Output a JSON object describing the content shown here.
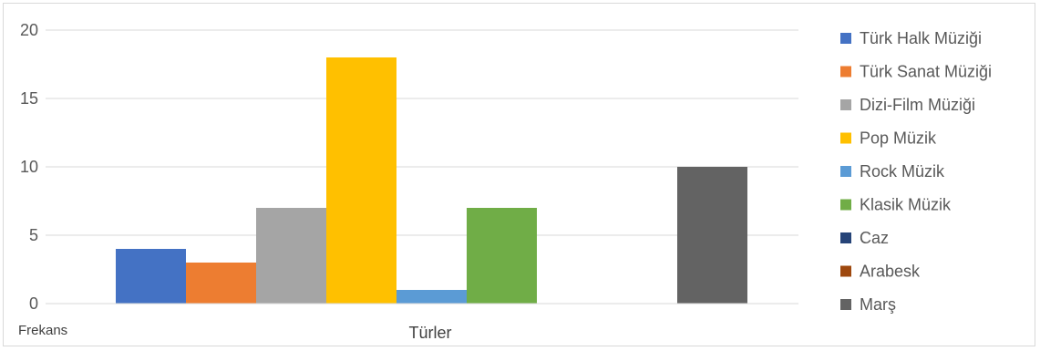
{
  "chart_data": {
    "type": "bar",
    "xlabel": "Türler",
    "ylabel": "Frekans",
    "ylim": [
      0,
      20
    ],
    "yticks": [
      "0",
      "5",
      "10",
      "15",
      "20"
    ],
    "grid": true,
    "legend_position": "right",
    "series": [
      {
        "name": "Türk Halk Müziği",
        "value": 4,
        "color": "#4472c4"
      },
      {
        "name": "Türk Sanat Müziği",
        "value": 3,
        "color": "#ed7d31"
      },
      {
        "name": "Dizi-Film Müziği",
        "value": 7,
        "color": "#a5a5a5"
      },
      {
        "name": "Pop Müzik",
        "value": 18,
        "color": "#ffc000"
      },
      {
        "name": "Rock Müzik",
        "value": 1,
        "color": "#5b9bd5"
      },
      {
        "name": "Klasik Müzik",
        "value": 7,
        "color": "#70ad47"
      },
      {
        "name": "Caz",
        "value": 0,
        "color": "#264478"
      },
      {
        "name": "Arabesk",
        "value": 0,
        "color": "#9e480e"
      },
      {
        "name": "Marş",
        "value": 10,
        "color": "#636363"
      }
    ]
  }
}
